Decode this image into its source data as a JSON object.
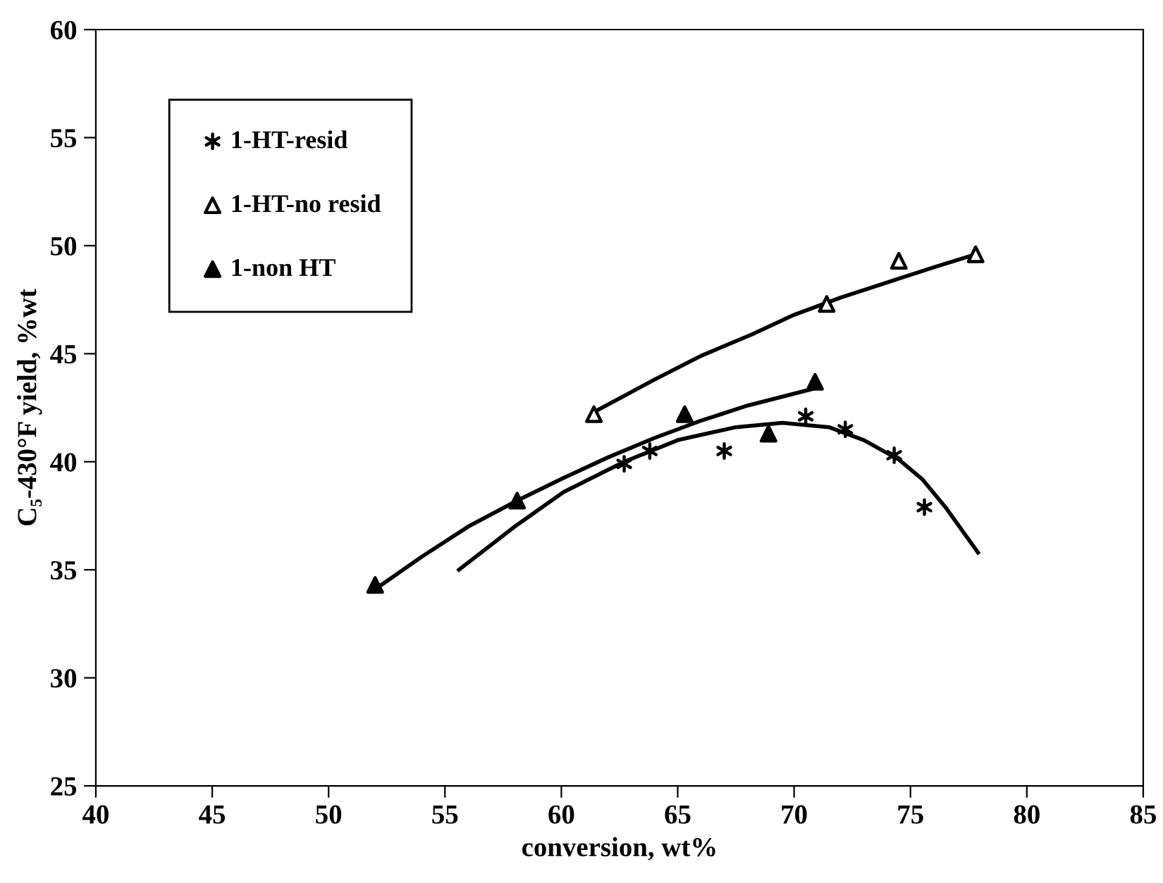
{
  "chart_data": {
    "type": "scatter",
    "xlabel": "conversion, wt%",
    "ylabel": "C₅-430°F yield, %wt",
    "xlim": [
      40,
      85
    ],
    "xticks": [
      40,
      45,
      50,
      55,
      60,
      65,
      70,
      75,
      80,
      85
    ],
    "ylim": [
      25,
      60
    ],
    "yticks": [
      25,
      30,
      35,
      40,
      45,
      50,
      55,
      60
    ],
    "grid": false,
    "legend": "top left",
    "series": [
      {
        "name": "1-HT-resid",
        "color": "#000000",
        "marker": "cross",
        "x": [
          62.7,
          63.8,
          67.0,
          70.5,
          72.2,
          74.3,
          75.6
        ],
        "values": [
          39.9,
          40.5,
          40.5,
          42.1,
          41.5,
          40.3,
          37.9
        ]
      },
      {
        "name": "1-HT-no resid",
        "color": "#ffffff",
        "marker": "triangle",
        "x": [
          61.4,
          71.4,
          74.5,
          77.8
        ],
        "values": [
          42.2,
          47.3,
          49.3,
          49.6
        ]
      },
      {
        "name": "1-non HT",
        "color": "#000000",
        "marker": "triangle",
        "x": [
          52.0,
          58.1,
          65.3,
          68.9,
          70.9
        ],
        "values": [
          34.3,
          38.2,
          42.2,
          41.3,
          43.7
        ]
      },
      {
        "type": "line",
        "color": "#000000",
        "marker": "none",
        "line_style": "solid",
        "x": [
          55.6,
          58,
          60.1,
          62.7,
          65,
          67.5,
          69.5,
          71.5,
          73,
          74.5,
          75.5,
          76.5,
          77.9
        ],
        "values": [
          35.0,
          37.0,
          38.6,
          40.0,
          41.0,
          41.6,
          41.8,
          41.6,
          41.0,
          40.1,
          39.2,
          37.9,
          35.8
        ]
      },
      {
        "type": "line",
        "color": "#000000",
        "marker": "none",
        "line_style": "solid",
        "x": [
          61.4,
          64,
          66,
          68.2,
          70,
          72,
          74,
          76,
          77.8
        ],
        "values": [
          42.3,
          43.8,
          44.9,
          45.9,
          46.8,
          47.6,
          48.3,
          49.0,
          49.6
        ]
      },
      {
        "type": "line",
        "color": "#000000",
        "marker": "none",
        "line_style": "solid",
        "x": [
          52.0,
          54,
          56,
          58.1,
          60,
          62,
          64,
          66,
          68,
          70.9
        ],
        "values": [
          34.1,
          35.6,
          37.0,
          38.2,
          39.2,
          40.2,
          41.1,
          41.9,
          42.6,
          43.4
        ]
      }
    ]
  }
}
